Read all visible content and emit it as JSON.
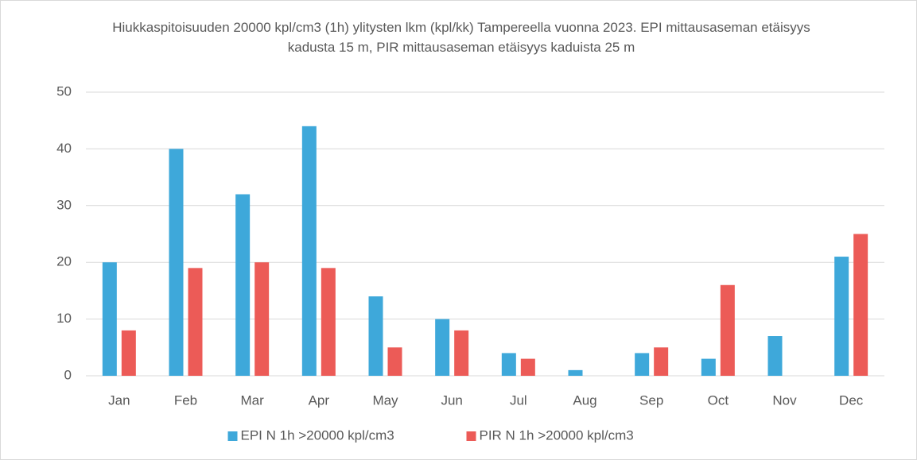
{
  "chart_data": {
    "type": "bar",
    "title": "Hiukkaspitoisuuden 20000 kpl/cm3 (1h) ylitysten lkm (kpl/kk) Tampereella vuonna 2023. EPI mittausaseman etäisyys kadusta 15 m, PIR mittausaseman etäisyys kaduista 25 m",
    "categories": [
      "Jan",
      "Feb",
      "Mar",
      "Apr",
      "May",
      "Jun",
      "Jul",
      "Aug",
      "Sep",
      "Oct",
      "Nov",
      "Dec"
    ],
    "series": [
      {
        "name": "EPI N 1h >20000 kpl/cm3",
        "color": "#3ea8da",
        "values": [
          20,
          40,
          32,
          44,
          14,
          10,
          4,
          1,
          4,
          3,
          7,
          21
        ]
      },
      {
        "name": "PIR N 1h >20000 kpl/cm3",
        "color": "#ec5b57",
        "values": [
          8,
          19,
          20,
          19,
          5,
          8,
          3,
          0,
          5,
          16,
          0,
          25
        ]
      }
    ],
    "ylim": [
      0,
      50
    ],
    "yticks": [
      0,
      10,
      20,
      30,
      40,
      50
    ],
    "grid": true,
    "legend": "bottom"
  }
}
